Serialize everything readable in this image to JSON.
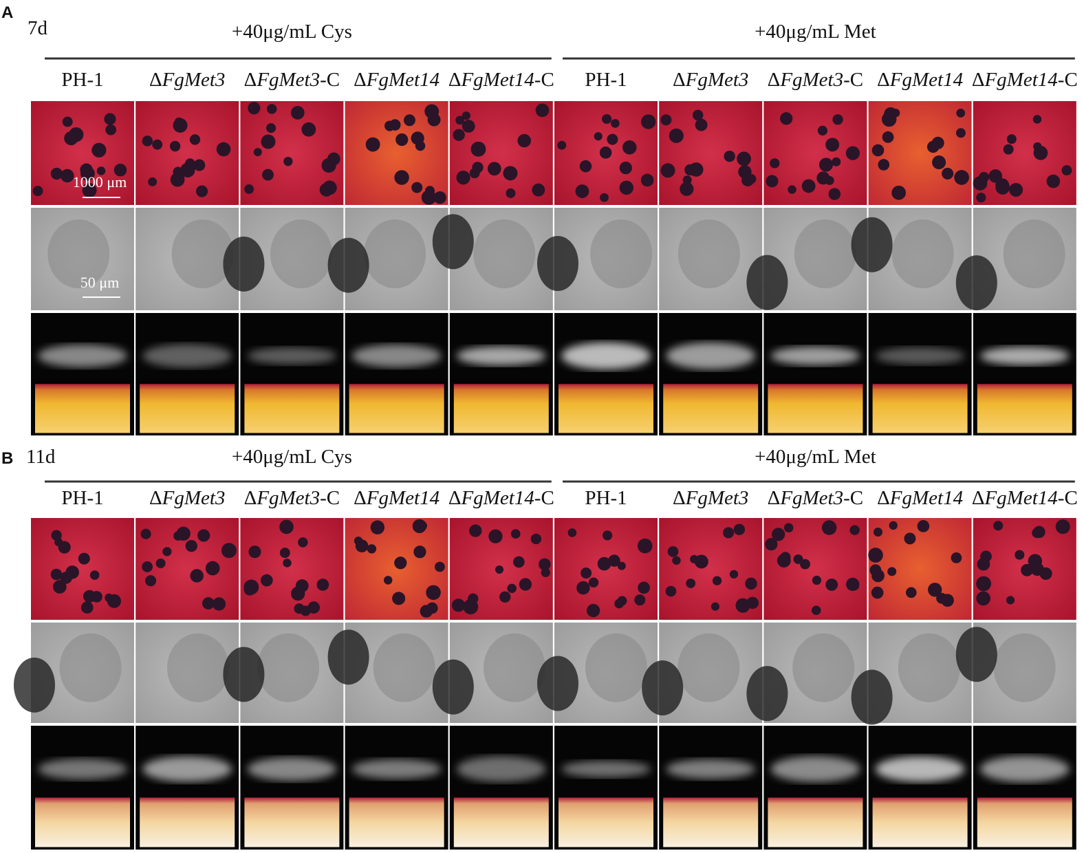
{
  "panels": [
    {
      "label": "A",
      "time": "7d",
      "groups": [
        {
          "title": "+40μg/mL Cys",
          "columns": [
            [
              "PH-1"
            ],
            [
              "Δ",
              "FgMet3"
            ],
            [
              "Δ",
              "FgMet3",
              "-C"
            ],
            [
              "Δ",
              "FgMet14"
            ],
            [
              "Δ",
              "FgMet14",
              "-C"
            ]
          ]
        },
        {
          "title": "+40μg/mL Met",
          "columns": [
            [
              "PH-1"
            ],
            [
              "Δ",
              "FgMet3"
            ],
            [
              "Δ",
              "FgMet3",
              "-C"
            ],
            [
              "Δ",
              "FgMet14"
            ],
            [
              "Δ",
              "FgMet14",
              "-C"
            ]
          ]
        }
      ],
      "scale_bars": [
        "1000 μm",
        "50 μm"
      ]
    },
    {
      "label": "B",
      "time": "11d",
      "groups": [
        {
          "title": "+40μg/mL Cys",
          "columns": [
            [
              "PH-1"
            ],
            [
              "Δ",
              "FgMet3"
            ],
            [
              "Δ",
              "FgMet3",
              "-C"
            ],
            [
              "Δ",
              "FgMet14"
            ],
            [
              "Δ",
              "FgMet14",
              "-C"
            ]
          ]
        },
        {
          "title": "+40μg/mL Met",
          "columns": [
            [
              "PH-1"
            ],
            [
              "Δ",
              "FgMet3"
            ],
            [
              "Δ",
              "FgMet3",
              "-C"
            ],
            [
              "Δ",
              "FgMet14"
            ],
            [
              "Δ",
              "FgMet14",
              "-C"
            ]
          ]
        }
      ]
    }
  ]
}
